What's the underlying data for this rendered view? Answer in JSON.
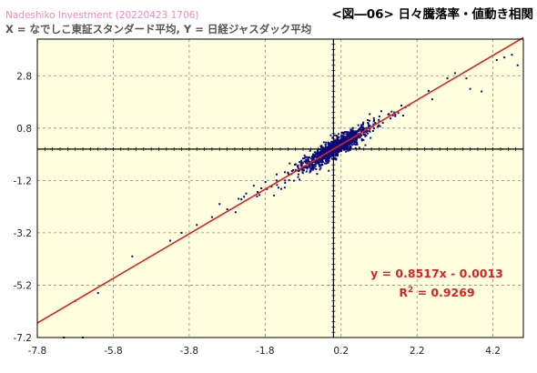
{
  "header": {
    "watermark": "Nadeshiko Investment  (20220423 1706)",
    "subtitle": "X = なでしこ東証スタンダード平均,  Y = 日経ジャスダック平均",
    "title": "<図―06> 日々騰落率・値動き相関"
  },
  "colors": {
    "plot_background": "#ffffe0",
    "points": "#0a0a7a",
    "regression_line": "#e02020",
    "grid": "#888888"
  },
  "chart_data": {
    "type": "scatter",
    "title": "<図―06> 日々騰落率・値動き相関",
    "xlabel": "X = なでしこ東証スタンダード平均",
    "ylabel": "Y = 日経ジャスダック平均",
    "xlim": [
      -7.8,
      5.0
    ],
    "ylim": [
      -7.2,
      4.2
    ],
    "x_ticks": [
      "-7.8",
      "-5.8",
      "-3.8",
      "-1.8",
      "0.2",
      "2.2",
      "4.2"
    ],
    "y_ticks": [
      "2.8",
      "0.8",
      "-1.2",
      "-3.2",
      "-5.2",
      "-7.2"
    ],
    "grid": true,
    "grid_style": "dashed",
    "regression": {
      "slope": 0.8517,
      "intercept": -0.0013,
      "equation": "y = 0.8517x - 0.0013",
      "r2_prefix": "R",
      "r2_exp": "2",
      "r2_value": " = 0.9269"
    },
    "points_approx_count": 1100,
    "sample_points": [
      [
        -6.8,
        -5.8
      ],
      [
        -7.1,
        -7.2
      ],
      [
        -6.2,
        -5.5
      ],
      [
        -6.6,
        -7.2
      ],
      [
        -5.3,
        -4.1
      ],
      [
        -4.3,
        -3.5
      ],
      [
        -4.0,
        -3.2
      ],
      [
        -3.6,
        -2.9
      ],
      [
        -3.2,
        -2.6
      ],
      [
        -3.0,
        -2.1
      ],
      [
        -2.8,
        -2.3
      ],
      [
        -2.5,
        -1.9
      ],
      [
        -2.3,
        -1.7
      ],
      [
        -2.1,
        -1.4
      ],
      [
        -1.9,
        -1.5
      ],
      [
        -1.5,
        -1.2
      ],
      [
        -1.2,
        -0.9
      ],
      [
        -1.0,
        -0.8
      ],
      [
        3.0,
        2.7
      ],
      [
        3.2,
        2.9
      ],
      [
        3.5,
        2.7
      ],
      [
        3.6,
        2.3
      ],
      [
        3.9,
        2.2
      ],
      [
        4.3,
        3.4
      ],
      [
        4.5,
        3.5
      ],
      [
        4.7,
        3.6
      ],
      [
        4.85,
        3.2
      ],
      [
        2.6,
        1.9
      ],
      [
        1.9,
        1.6
      ],
      [
        1.6,
        1.4
      ],
      [
        1.3,
        1.0
      ],
      [
        1.1,
        1.0
      ],
      [
        0.9,
        0.6
      ]
    ]
  }
}
